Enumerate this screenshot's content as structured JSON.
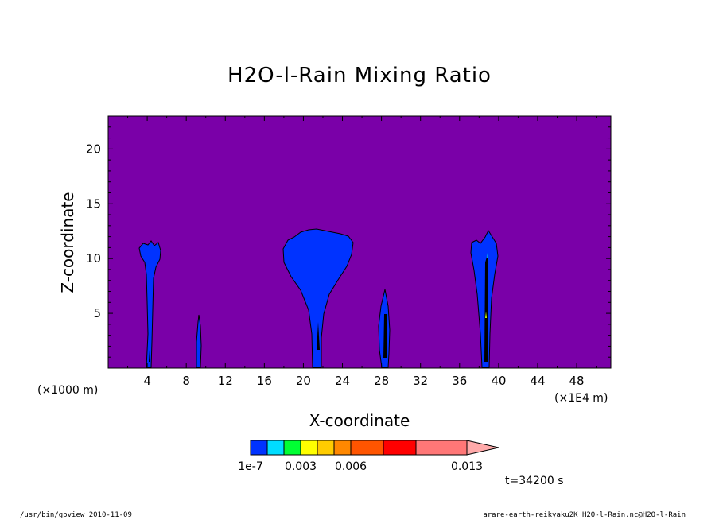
{
  "chart_data": {
    "type": "heatmap",
    "title": "H2O-l-Rain Mixing Ratio",
    "xlabel": "X-coordinate",
    "ylabel": "Z-coordinate",
    "x_unit_left": "(×1000 m)",
    "x_unit_right": "(×1E4 m)",
    "xlim": [
      0,
      51.5
    ],
    "ylim": [
      0,
      23
    ],
    "x_ticks": [
      4,
      8,
      12,
      16,
      20,
      24,
      28,
      32,
      36,
      40,
      44,
      48
    ],
    "x_tick_labels": [
      "4",
      "8",
      "12",
      "16",
      "20",
      "24",
      "28",
      "32",
      "36",
      "40",
      "44",
      "48"
    ],
    "y_ticks": [
      5,
      10,
      15,
      20
    ],
    "y_tick_labels": [
      "5",
      "10",
      "15",
      "20"
    ],
    "background_color": "#7a00a8",
    "cloud_regions": [
      {
        "x_center": 4.4,
        "z_top": 11.5,
        "note": "narrow column with anvil"
      },
      {
        "x_center": 9.2,
        "z_top": 4.8,
        "note": "thin column"
      },
      {
        "x_center": 20.9,
        "z_top": 12.7,
        "note": "broad anvil cloud"
      },
      {
        "x_center": 28.1,
        "z_top": 7.2,
        "note": "small column"
      },
      {
        "x_center": 38.7,
        "z_top": 12.5,
        "note": "column with anvil"
      }
    ],
    "colorbar": {
      "colors": [
        "#0033ff",
        "#00ddff",
        "#00ff33",
        "#ffff00",
        "#ffcc00",
        "#ff8800",
        "#ff5500",
        "#ff0000",
        "#ff7777",
        "#ffaaaa"
      ],
      "labels": [
        "1e-7",
        "0.003",
        "0.006",
        "0.013"
      ]
    },
    "time_label": "t=34200 s"
  },
  "footer": {
    "left": "/usr/bin/gpview   2010-11-09",
    "right": "arare-earth-reikyaku2K_H2O-l-Rain.nc@H2O-l-Rain"
  }
}
